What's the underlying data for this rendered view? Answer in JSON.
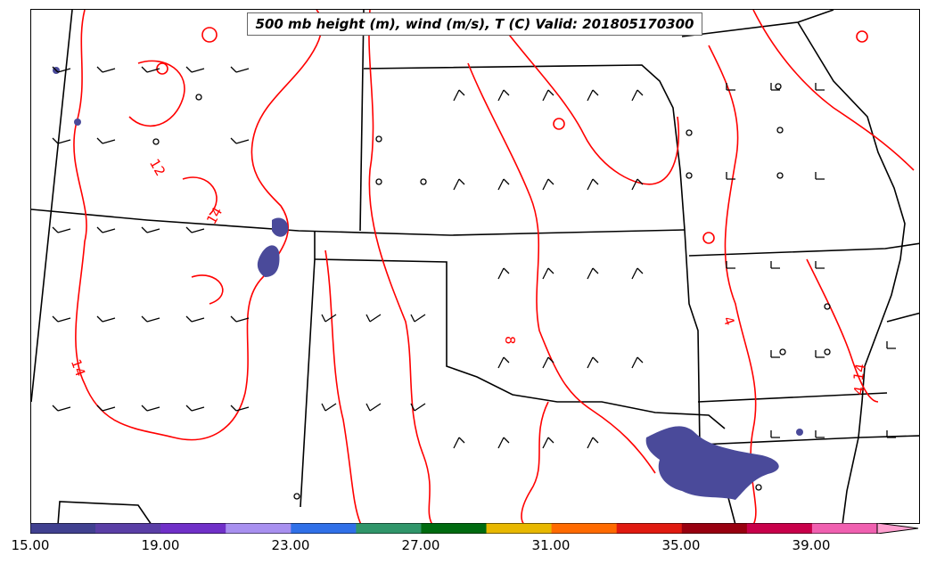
{
  "title": "500 mb height (m), wind (m/s), T (C) Valid: 201805170300",
  "contour_labels": [
    "12",
    "14",
    "14",
    "8",
    "4",
    "4",
    "14"
  ],
  "colorbar": {
    "tick_labels": [
      "15.00",
      "19.00",
      "23.00",
      "27.00",
      "31.00",
      "35.00",
      "39.00"
    ],
    "colors": [
      "#404090",
      "#5a3ea6",
      "#7030c8",
      "#a890f0",
      "#3070e8",
      "#30966a",
      "#006b10",
      "#e8b800",
      "#ff6a00",
      "#e01a10",
      "#980010",
      "#c8004a",
      "#f060b0",
      "#ffa0d0"
    ]
  },
  "colors": {
    "contour": "#ff0000",
    "boundary": "#000000",
    "shading": "#4a4a9a"
  }
}
